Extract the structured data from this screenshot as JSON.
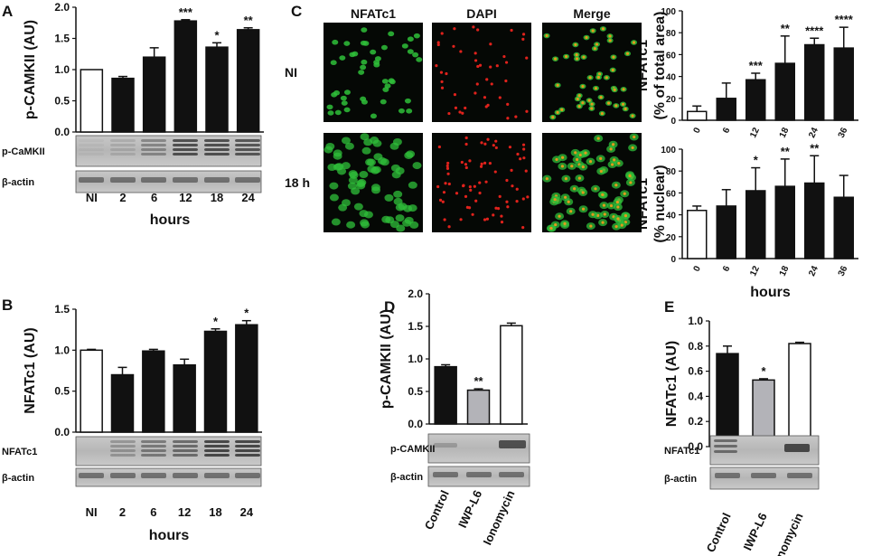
{
  "colors": {
    "black_bar": "#111111",
    "gray_bar": "#b3b3b8",
    "open_bar": "#ffffff",
    "green": "#2fbf3a",
    "red": "#e0221c"
  },
  "chart_data": [
    {
      "panel": "A",
      "type": "bar",
      "ylabel": "p-CAMKII (AU)",
      "xlabel": "hours",
      "categories": [
        "NI",
        "2",
        "6",
        "12",
        "18",
        "24"
      ],
      "values": [
        1.0,
        0.86,
        1.2,
        1.78,
        1.36,
        1.64
      ],
      "errors": [
        0.0,
        0.03,
        0.15,
        0.02,
        0.07,
        0.03
      ],
      "fills": [
        "open",
        "black",
        "black",
        "black",
        "black",
        "black"
      ],
      "significance": [
        "",
        "",
        "",
        "***",
        "*",
        "**"
      ],
      "ylim": [
        0,
        2.0
      ],
      "yticks": [
        "0.0",
        "0.5",
        "1.0",
        "1.5",
        "2.0"
      ],
      "blots": [
        "p-CaMKII",
        "β-actin"
      ]
    },
    {
      "panel": "B",
      "type": "bar",
      "ylabel": "NFATc1 (AU)",
      "xlabel": "hours",
      "categories": [
        "NI",
        "2",
        "6",
        "12",
        "18",
        "24"
      ],
      "values": [
        1.0,
        0.7,
        0.99,
        0.82,
        1.23,
        1.31
      ],
      "errors": [
        0.01,
        0.09,
        0.02,
        0.07,
        0.03,
        0.05
      ],
      "fills": [
        "open",
        "black",
        "black",
        "black",
        "black",
        "black"
      ],
      "significance": [
        "",
        "",
        "",
        "",
        "*",
        "*"
      ],
      "ylim": [
        0,
        1.5
      ],
      "yticks": [
        "0.0",
        "0.5",
        "1.0",
        "1.5"
      ],
      "blots": [
        "NFATc1",
        "β-actin"
      ]
    },
    {
      "panel": "C1",
      "type": "bar",
      "ylabel": "NFATc1",
      "ylabel2": "(% of total area)",
      "categories": [
        "0",
        "6",
        "12",
        "18",
        "24",
        "36"
      ],
      "values": [
        8,
        20,
        37,
        52,
        69,
        66
      ],
      "errors": [
        5,
        14,
        6,
        25,
        6,
        19
      ],
      "fills": [
        "open",
        "black",
        "black",
        "black",
        "black",
        "black"
      ],
      "significance": [
        "",
        "",
        "***",
        "**",
        "****",
        "****"
      ],
      "ylim": [
        0,
        100
      ],
      "yticks": [
        "0",
        "20",
        "40",
        "60",
        "80",
        "100"
      ]
    },
    {
      "panel": "C2",
      "type": "bar",
      "ylabel": "NFATc1",
      "ylabel2": "(% nuclear)",
      "xlabel": "hours",
      "categories": [
        "0",
        "6",
        "12",
        "18",
        "24",
        "36"
      ],
      "values": [
        44,
        48,
        62,
        66,
        69,
        56
      ],
      "errors": [
        4,
        15,
        21,
        25,
        25,
        20
      ],
      "fills": [
        "open",
        "black",
        "black",
        "black",
        "black",
        "black"
      ],
      "significance": [
        "",
        "",
        "*",
        "**",
        "**",
        ""
      ],
      "ylim": [
        0,
        100
      ],
      "yticks": [
        "0",
        "20",
        "40",
        "60",
        "80",
        "100"
      ]
    },
    {
      "panel": "D",
      "type": "bar",
      "ylabel": "p-CAMKII (AU)",
      "categories": [
        "Control",
        "IWP-L6",
        "Ionomycin"
      ],
      "values": [
        0.88,
        0.52,
        1.51
      ],
      "errors": [
        0.03,
        0.02,
        0.04
      ],
      "fills": [
        "black",
        "gray",
        "open"
      ],
      "significance": [
        "",
        "**",
        ""
      ],
      "ylim": [
        0,
        2.0
      ],
      "yticks": [
        "0.0",
        "0.5",
        "1.0",
        "1.5",
        "2.0"
      ],
      "blots": [
        "p-CAMKII",
        "β-actin"
      ]
    },
    {
      "panel": "E",
      "type": "bar",
      "ylabel": "NFATc1 (AU)",
      "categories": [
        "Control",
        "IWP-L6",
        "Ionomycin"
      ],
      "values": [
        0.74,
        0.53,
        0.82
      ],
      "errors": [
        0.06,
        0.01,
        0.01
      ],
      "fills": [
        "black",
        "gray",
        "open"
      ],
      "significance": [
        "",
        "*",
        ""
      ],
      "ylim": [
        0,
        1.0
      ],
      "yticks": [
        "0.0",
        "0.2",
        "0.4",
        "0.6",
        "0.8",
        "1.0"
      ],
      "blots": [
        "NFATc1",
        "β-actin"
      ]
    }
  ],
  "images": {
    "columns": [
      "NFATc1",
      "DAPI",
      "Merge"
    ],
    "rows": [
      "NI",
      "18 h"
    ]
  }
}
